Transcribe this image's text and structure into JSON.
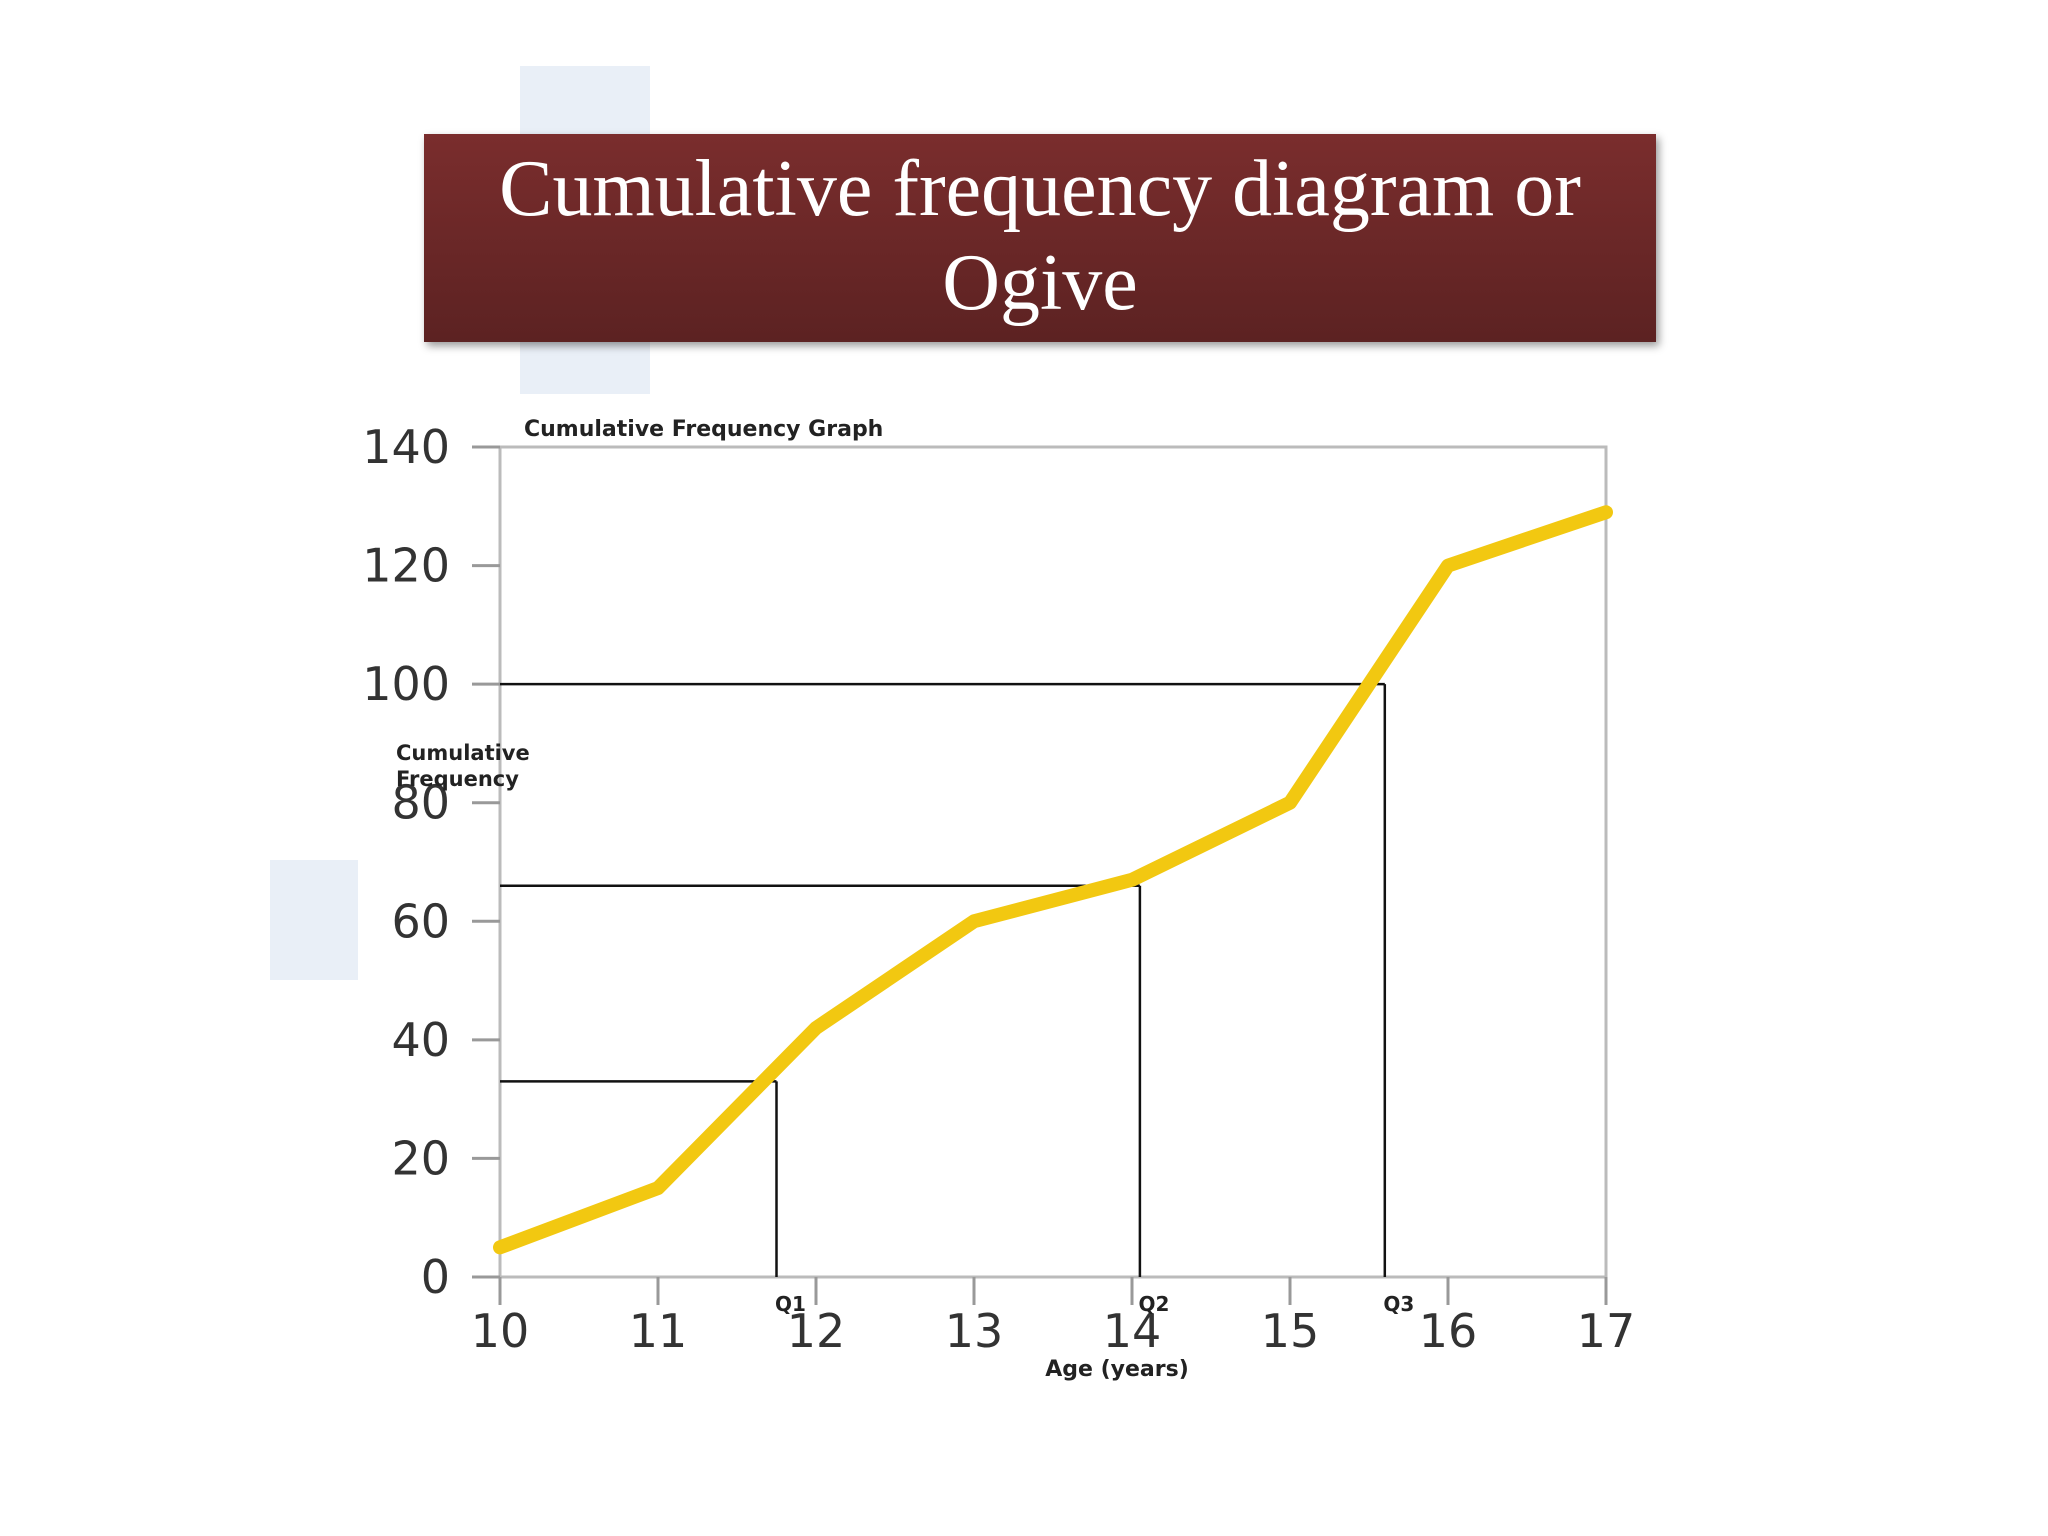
{
  "slide_title": "Cumulative frequency diagram or Ogive",
  "chart_data": {
    "type": "line",
    "title": "Cumulative Frequency Graph",
    "x_label": "Age (years)",
    "y_label": "Cumulative Frequency",
    "x": [
      10,
      11,
      12,
      13,
      14,
      15,
      16,
      17
    ],
    "series": [
      {
        "name": "Cumulative frequency",
        "color": "#f2c811",
        "values": [
          5,
          15,
          42,
          60,
          67,
          80,
          120,
          129
        ]
      }
    ],
    "xlim": [
      10,
      17
    ],
    "ylim": [
      0,
      140
    ],
    "xticks": [
      10,
      11,
      12,
      13,
      14,
      15,
      16,
      17
    ],
    "yticks": [
      0,
      20,
      40,
      60,
      80,
      100,
      120,
      140
    ],
    "quartiles": [
      {
        "label": "Q1",
        "x": 11.75,
        "y": 33
      },
      {
        "label": "Q2",
        "x": 14.05,
        "y": 66
      },
      {
        "label": "Q3",
        "x": 15.6,
        "y": 100
      }
    ]
  }
}
